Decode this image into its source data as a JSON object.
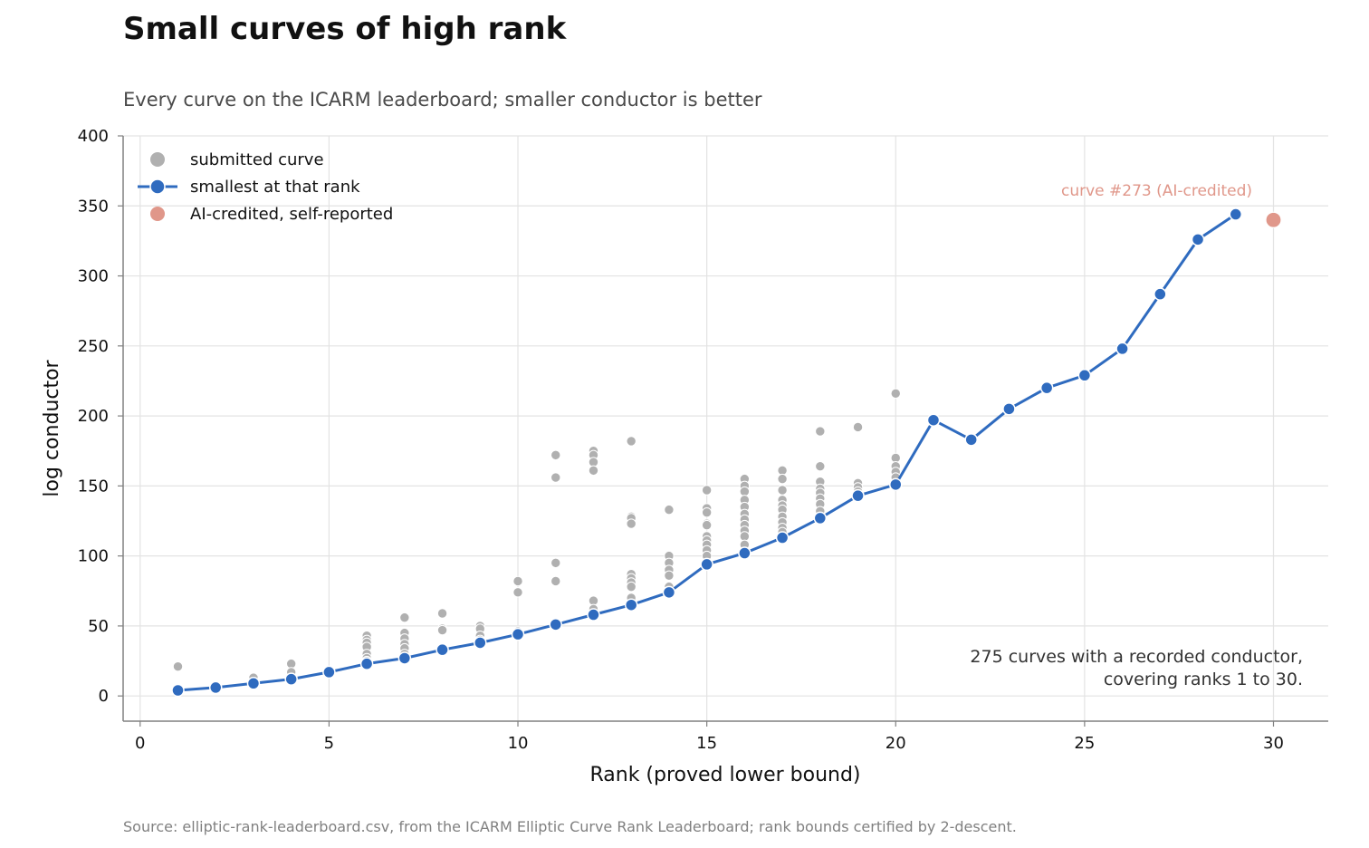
{
  "chart_data": {
    "type": "scatter",
    "title": "Small curves of high rank",
    "subtitle": "Every curve on the ICARM leaderboard; smaller conductor is better",
    "xlabel": "Rank (proved lower bound)",
    "ylabel": "log conductor",
    "xlim": [
      -0.45,
      31.45
    ],
    "ylim": [
      -18,
      400
    ],
    "x_ticks": [
      0,
      5,
      10,
      15,
      20,
      25,
      30
    ],
    "y_ticks": [
      0,
      50,
      100,
      150,
      200,
      250,
      300,
      350,
      400
    ],
    "grid": true,
    "legend_position": "top-left",
    "legend": [
      {
        "label": "submitted curve",
        "marker": "gray-dot"
      },
      {
        "label": "smallest at that rank",
        "marker": "blue-line-dot"
      },
      {
        "label": "AI-credited, self-reported",
        "marker": "salmon-dot"
      }
    ],
    "colors": {
      "submitted": "#b0b0b0",
      "smallest": "#2f6bbf",
      "ai_credited": "#e0978a",
      "grid": "#e3e3e3",
      "axis": "#808080"
    },
    "series": [
      {
        "name": "submitted curve",
        "points": [
          [
            1,
            21
          ],
          [
            3,
            13
          ],
          [
            4,
            23
          ],
          [
            4,
            17
          ],
          [
            6,
            43
          ],
          [
            6,
            40
          ],
          [
            6,
            38
          ],
          [
            6,
            35
          ],
          [
            6,
            30
          ],
          [
            6,
            27
          ],
          [
            6,
            25
          ],
          [
            7,
            56
          ],
          [
            7,
            45
          ],
          [
            7,
            41
          ],
          [
            7,
            37
          ],
          [
            7,
            34
          ],
          [
            7,
            30
          ],
          [
            8,
            59
          ],
          [
            8,
            48
          ],
          [
            8,
            47
          ],
          [
            9,
            50
          ],
          [
            9,
            48
          ],
          [
            9,
            43
          ],
          [
            9,
            40
          ],
          [
            10,
            82
          ],
          [
            10,
            74
          ],
          [
            10,
            46
          ],
          [
            11,
            172
          ],
          [
            11,
            156
          ],
          [
            11,
            95
          ],
          [
            11,
            82
          ],
          [
            12,
            175
          ],
          [
            12,
            172
          ],
          [
            12,
            167
          ],
          [
            12,
            161
          ],
          [
            12,
            68
          ],
          [
            12,
            62
          ],
          [
            13,
            182
          ],
          [
            13,
            128
          ],
          [
            13,
            127
          ],
          [
            13,
            123
          ],
          [
            13,
            87
          ],
          [
            13,
            84
          ],
          [
            13,
            81
          ],
          [
            13,
            78
          ],
          [
            13,
            70
          ],
          [
            14,
            133
          ],
          [
            14,
            100
          ],
          [
            14,
            95
          ],
          [
            14,
            90
          ],
          [
            14,
            86
          ],
          [
            14,
            78
          ],
          [
            15,
            147
          ],
          [
            15,
            134
          ],
          [
            15,
            131
          ],
          [
            15,
            123
          ],
          [
            15,
            122
          ],
          [
            15,
            114
          ],
          [
            15,
            111
          ],
          [
            15,
            108
          ],
          [
            15,
            104
          ],
          [
            15,
            100
          ],
          [
            16,
            155
          ],
          [
            16,
            150
          ],
          [
            16,
            146
          ],
          [
            16,
            140
          ],
          [
            16,
            135
          ],
          [
            16,
            130
          ],
          [
            16,
            126
          ],
          [
            16,
            122
          ],
          [
            16,
            118
          ],
          [
            16,
            114
          ],
          [
            16,
            108
          ],
          [
            17,
            161
          ],
          [
            17,
            155
          ],
          [
            17,
            147
          ],
          [
            17,
            140
          ],
          [
            17,
            136
          ],
          [
            17,
            133
          ],
          [
            17,
            128
          ],
          [
            17,
            124
          ],
          [
            17,
            120
          ],
          [
            17,
            117
          ],
          [
            18,
            189
          ],
          [
            18,
            164
          ],
          [
            18,
            153
          ],
          [
            18,
            148
          ],
          [
            18,
            145
          ],
          [
            18,
            141
          ],
          [
            18,
            137
          ],
          [
            18,
            132
          ],
          [
            19,
            192
          ],
          [
            19,
            152
          ],
          [
            19,
            149
          ],
          [
            19,
            146
          ],
          [
            20,
            216
          ],
          [
            20,
            170
          ],
          [
            20,
            164
          ],
          [
            20,
            160
          ],
          [
            20,
            156
          ]
        ]
      },
      {
        "name": "smallest at that rank",
        "x": [
          1,
          2,
          3,
          4,
          5,
          6,
          7,
          8,
          9,
          10,
          11,
          12,
          13,
          14,
          15,
          16,
          17,
          18,
          19,
          20,
          21,
          22,
          23,
          24,
          25,
          26,
          27,
          28,
          29
        ],
        "y": [
          4,
          6,
          9,
          12,
          17,
          23,
          27,
          33,
          38,
          44,
          51,
          58,
          65,
          74,
          94,
          102,
          113,
          127,
          143,
          151,
          197,
          183,
          205,
          220,
          229,
          248,
          287,
          326,
          344
        ]
      },
      {
        "name": "AI-credited, self-reported",
        "x": [
          30
        ],
        "y": [
          340
        ]
      }
    ],
    "annotations": {
      "ai_label": "curve #273 (AI-credited)",
      "summary_line1": "275 curves with a recorded conductor,",
      "summary_line2": "covering ranks 1 to 30."
    },
    "source": "Source: elliptic-rank-leaderboard.csv, from the ICARM Elliptic Curve Rank Leaderboard; rank bounds certified by 2-descent."
  }
}
